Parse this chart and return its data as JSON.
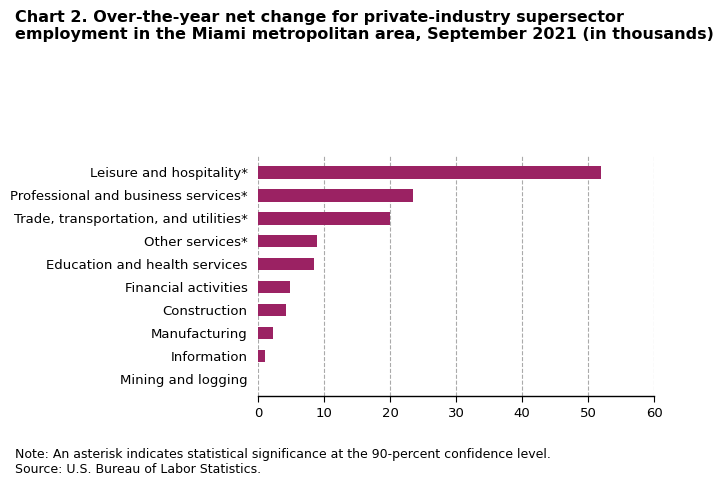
{
  "title_line1": "Chart 2. Over-the-year net change for private-industry supersector",
  "title_line2": "employment in the Miami metropolitan area, September 2021 (in thousands)",
  "categories": [
    "Mining and logging",
    "Information",
    "Manufacturing",
    "Construction",
    "Financial activities",
    "Education and health services",
    "Other services*",
    "Trade, transportation, and utilities*",
    "Professional and business services*",
    "Leisure and hospitality*"
  ],
  "values": [
    0.0,
    1.0,
    2.2,
    4.3,
    4.9,
    8.5,
    9.0,
    20.0,
    23.5,
    52.0
  ],
  "bar_color": "#9b2263",
  "xlim": [
    0,
    60
  ],
  "xticks": [
    0,
    10,
    20,
    30,
    40,
    50,
    60
  ],
  "note": "Note: An asterisk indicates statistical significance at the 90-percent confidence level.",
  "source": "Source: U.S. Bureau of Labor Statistics.",
  "title_fontsize": 11.5,
  "label_fontsize": 9.5,
  "tick_fontsize": 9.5,
  "note_fontsize": 9,
  "bg_color": "#ffffff",
  "bar_height": 0.55
}
